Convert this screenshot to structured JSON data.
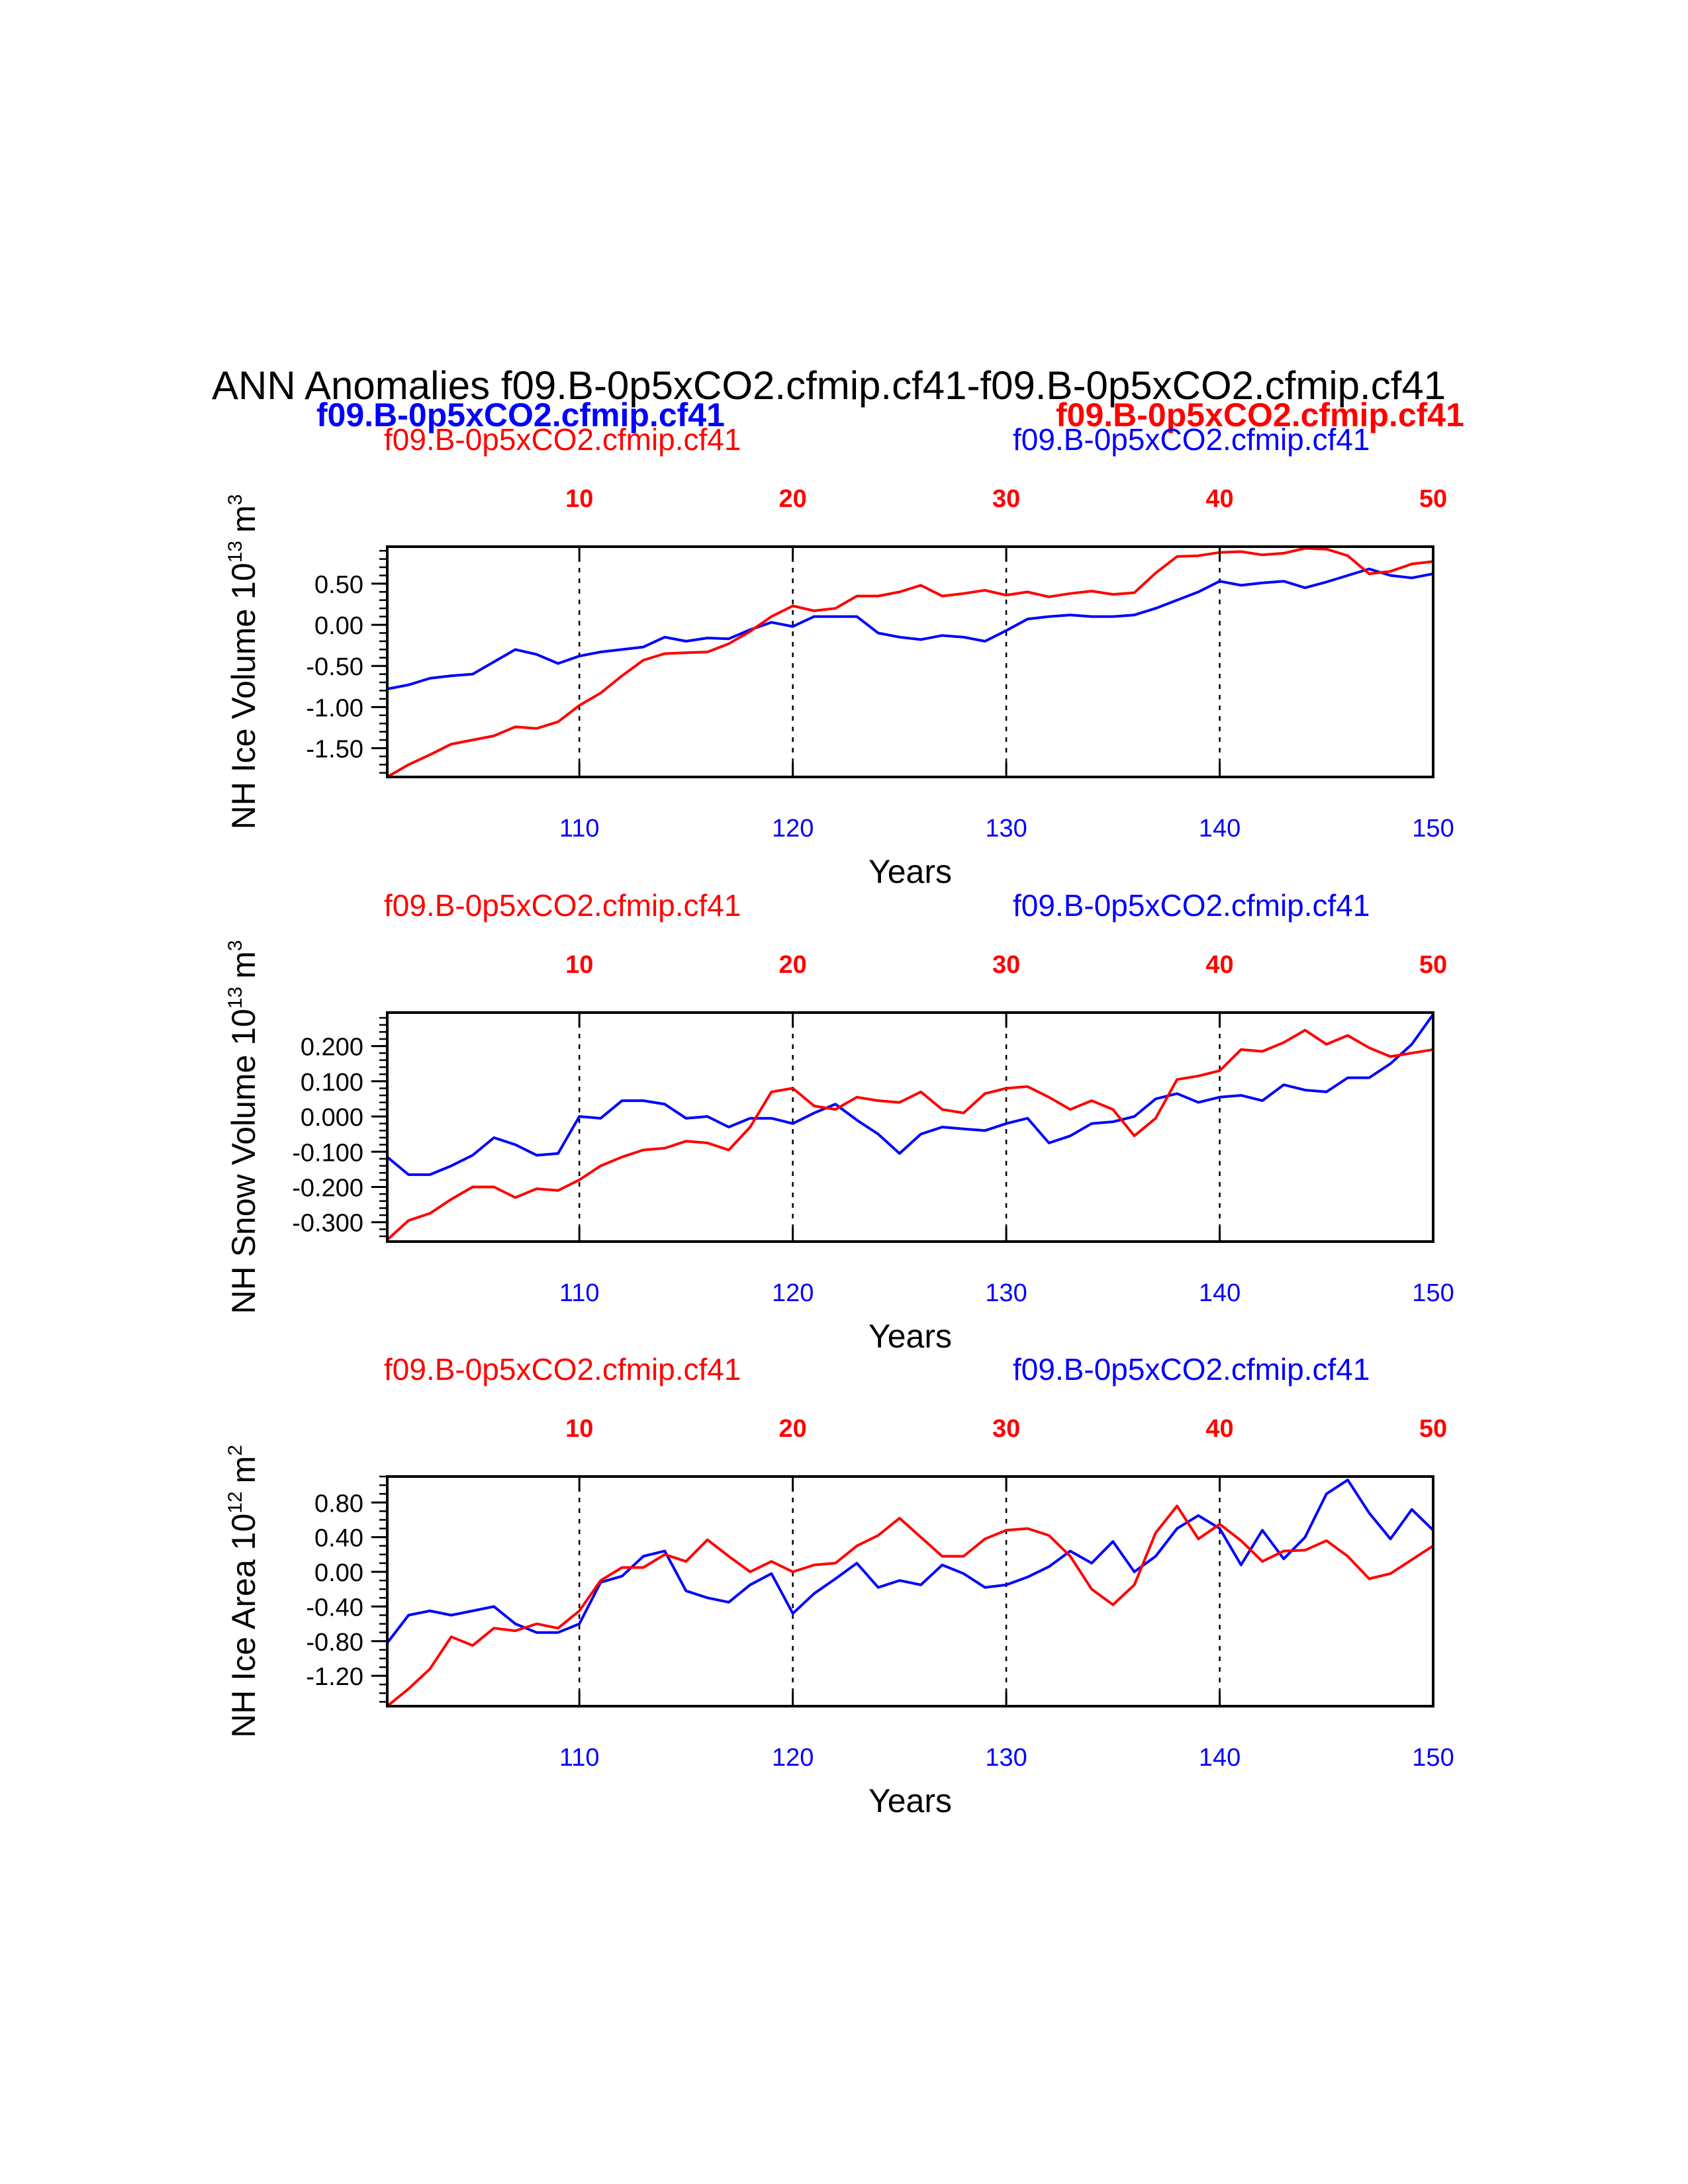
{
  "title": "ANN Anomalies f09.B-0p5xCO2.cfmip.cf41-f09.B-0p5xCO2.cfmip.cf41",
  "legend": {
    "blue_label": "f09.B-0p5xCO2.cfmip.cf41",
    "red_label": "f09.B-0p5xCO2.cfmip.cf41"
  },
  "colors": {
    "case1": "#0000ff",
    "case2": "#ff0000",
    "axis": "#000000"
  },
  "chart_data": [
    {
      "type": "line",
      "ylabel": "NH Ice Volume 10^13 m^3",
      "ylabel_main": "NH Ice Volume 10",
      "ylabel_exp": "13",
      "ylabel_unit": "m",
      "ylabel_unit_exp": "3",
      "xlabel": "Years",
      "top_left_label": "f09.B-0p5xCO2.cfmip.cf41",
      "top_right_label": "f09.B-0p5xCO2.cfmip.cf41",
      "xlim": [
        101,
        150
      ],
      "ylim": [
        -1.85,
        0.95
      ],
      "yticks": [
        0.5,
        0.0,
        -0.5,
        -1.0,
        -1.5
      ],
      "ytick_labels": [
        "0.50",
        "0.00",
        "-0.50",
        "-1.00",
        "-1.50"
      ],
      "ytick_minor": 0.1,
      "bottom_ticks": [
        110,
        120,
        130,
        140,
        150
      ],
      "bottom_tick_labels": [
        "110",
        "120",
        "130",
        "140",
        "150"
      ],
      "top_ticks": [
        10,
        20,
        30,
        40,
        50
      ],
      "top_tick_labels": [
        "10",
        "20",
        "30",
        "40",
        "50"
      ],
      "x": [
        101,
        102,
        103,
        104,
        105,
        106,
        107,
        108,
        109,
        110,
        111,
        112,
        113,
        114,
        115,
        116,
        117,
        118,
        119,
        120,
        121,
        122,
        123,
        124,
        125,
        126,
        127,
        128,
        129,
        130,
        131,
        132,
        133,
        134,
        135,
        136,
        137,
        138,
        139,
        140,
        141,
        142,
        143,
        144,
        145,
        146,
        147,
        148,
        149,
        150
      ],
      "series": [
        {
          "color_key": "case1",
          "values": [
            -0.78,
            -0.73,
            -0.65,
            -0.62,
            -0.6,
            -0.45,
            -0.3,
            -0.36,
            -0.47,
            -0.38,
            -0.33,
            -0.3,
            -0.27,
            -0.15,
            -0.2,
            -0.16,
            -0.17,
            -0.06,
            0.03,
            -0.02,
            0.1,
            0.1,
            0.1,
            -0.1,
            -0.15,
            -0.18,
            -0.13,
            -0.15,
            -0.2,
            -0.07,
            0.07,
            0.1,
            0.12,
            0.1,
            0.1,
            0.12,
            0.2,
            0.3,
            0.4,
            0.53,
            0.48,
            0.51,
            0.53,
            0.45,
            0.52,
            0.6,
            0.68,
            0.6,
            0.57,
            0.62
          ]
        },
        {
          "color_key": "case2",
          "values": [
            -1.85,
            -1.7,
            -1.58,
            -1.45,
            -1.4,
            -1.35,
            -1.24,
            -1.26,
            -1.18,
            -0.98,
            -0.83,
            -0.62,
            -0.43,
            -0.35,
            -0.34,
            -0.33,
            -0.23,
            -0.08,
            0.1,
            0.23,
            0.17,
            0.2,
            0.35,
            0.35,
            0.4,
            0.48,
            0.35,
            0.38,
            0.42,
            0.36,
            0.4,
            0.34,
            0.38,
            0.41,
            0.37,
            0.39,
            0.63,
            0.83,
            0.84,
            0.88,
            0.89,
            0.85,
            0.87,
            0.93,
            0.92,
            0.84,
            0.62,
            0.65,
            0.74,
            0.77
          ]
        }
      ]
    },
    {
      "type": "line",
      "ylabel": "NH Snow Volume 10^13 m^3",
      "ylabel_main": "NH Snow Volume 10",
      "ylabel_exp": "13",
      "ylabel_unit": "m",
      "ylabel_unit_exp": "3",
      "xlabel": "Years",
      "top_left_label": "f09.B-0p5xCO2.cfmip.cf41",
      "top_right_label": "f09.B-0p5xCO2.cfmip.cf41",
      "xlim": [
        101,
        150
      ],
      "ylim": [
        -0.355,
        0.295
      ],
      "yticks": [
        0.2,
        0.1,
        0.0,
        -0.1,
        -0.2,
        -0.3
      ],
      "ytick_labels": [
        "0.200",
        "0.100",
        "0.000",
        "-0.100",
        "-0.200",
        "-0.300"
      ],
      "ytick_minor": 0.02,
      "bottom_ticks": [
        110,
        120,
        130,
        140,
        150
      ],
      "bottom_tick_labels": [
        "110",
        "120",
        "130",
        "140",
        "150"
      ],
      "top_ticks": [
        10,
        20,
        30,
        40,
        50
      ],
      "top_tick_labels": [
        "10",
        "20",
        "30",
        "40",
        "50"
      ],
      "x": [
        101,
        102,
        103,
        104,
        105,
        106,
        107,
        108,
        109,
        110,
        111,
        112,
        113,
        114,
        115,
        116,
        117,
        118,
        119,
        120,
        121,
        122,
        123,
        124,
        125,
        126,
        127,
        128,
        129,
        130,
        131,
        132,
        133,
        134,
        135,
        136,
        137,
        138,
        139,
        140,
        141,
        142,
        143,
        144,
        145,
        146,
        147,
        148,
        149,
        150
      ],
      "series": [
        {
          "color_key": "case1",
          "values": [
            -0.115,
            -0.165,
            -0.165,
            -0.14,
            -0.11,
            -0.06,
            -0.08,
            -0.11,
            -0.105,
            0.0,
            -0.005,
            0.045,
            0.045,
            0.035,
            -0.005,
            0.0,
            -0.03,
            -0.005,
            -0.005,
            -0.02,
            0.01,
            0.035,
            -0.01,
            -0.05,
            -0.105,
            -0.05,
            -0.03,
            -0.035,
            -0.04,
            -0.02,
            -0.005,
            -0.075,
            -0.055,
            -0.02,
            -0.015,
            0.0,
            0.05,
            0.065,
            0.04,
            0.055,
            0.06,
            0.045,
            0.09,
            0.075,
            0.07,
            0.11,
            0.11,
            0.15,
            0.205,
            0.29
          ]
        },
        {
          "color_key": "case2",
          "values": [
            -0.35,
            -0.295,
            -0.275,
            -0.235,
            -0.2,
            -0.2,
            -0.23,
            -0.205,
            -0.21,
            -0.18,
            -0.14,
            -0.115,
            -0.095,
            -0.09,
            -0.07,
            -0.075,
            -0.095,
            -0.03,
            0.07,
            0.08,
            0.03,
            0.02,
            0.055,
            0.045,
            0.04,
            0.07,
            0.02,
            0.01,
            0.065,
            0.08,
            0.085,
            0.055,
            0.02,
            0.045,
            0.02,
            -0.055,
            -0.005,
            0.105,
            0.115,
            0.13,
            0.19,
            0.185,
            0.21,
            0.245,
            0.205,
            0.23,
            0.195,
            0.17,
            0.18,
            0.19
          ]
        }
      ]
    },
    {
      "type": "line",
      "ylabel": "NH Ice Area 10^12 m^2",
      "ylabel_main": "NH Ice Area 10",
      "ylabel_exp": "12",
      "ylabel_unit": "m",
      "ylabel_unit_exp": "2",
      "xlabel": "Years",
      "top_left_label": "f09.B-0p5xCO2.cfmip.cf41",
      "top_right_label": "f09.B-0p5xCO2.cfmip.cf41",
      "xlim": [
        101,
        150
      ],
      "ylim": [
        -1.55,
        1.1
      ],
      "yticks": [
        0.8,
        0.4,
        0.0,
        -0.4,
        -0.8,
        -1.2
      ],
      "ytick_labels": [
        "0.80",
        "0.40",
        "0.00",
        "-0.40",
        "-0.80",
        "-1.20"
      ],
      "ytick_minor": 0.1,
      "bottom_ticks": [
        110,
        120,
        130,
        140,
        150
      ],
      "bottom_tick_labels": [
        "110",
        "120",
        "130",
        "140",
        "150"
      ],
      "top_ticks": [
        10,
        20,
        30,
        40,
        50
      ],
      "top_tick_labels": [
        "10",
        "20",
        "30",
        "40",
        "50"
      ],
      "x": [
        101,
        102,
        103,
        104,
        105,
        106,
        107,
        108,
        109,
        110,
        111,
        112,
        113,
        114,
        115,
        116,
        117,
        118,
        119,
        120,
        121,
        122,
        123,
        124,
        125,
        126,
        127,
        128,
        129,
        130,
        131,
        132,
        133,
        134,
        135,
        136,
        137,
        138,
        139,
        140,
        141,
        142,
        143,
        144,
        145,
        146,
        147,
        148,
        149,
        150
      ],
      "series": [
        {
          "color_key": "case1",
          "values": [
            -0.82,
            -0.5,
            -0.45,
            -0.5,
            -0.45,
            -0.4,
            -0.6,
            -0.7,
            -0.7,
            -0.6,
            -0.12,
            -0.05,
            0.18,
            0.24,
            -0.22,
            -0.3,
            -0.35,
            -0.15,
            -0.02,
            -0.48,
            -0.25,
            -0.08,
            0.1,
            -0.18,
            -0.1,
            -0.15,
            0.08,
            -0.02,
            -0.18,
            -0.15,
            -0.06,
            0.06,
            0.24,
            0.1,
            0.35,
            0.0,
            0.18,
            0.5,
            0.65,
            0.5,
            0.08,
            0.48,
            0.15,
            0.4,
            0.9,
            1.06,
            0.68,
            0.38,
            0.72,
            0.48
          ]
        },
        {
          "color_key": "case2",
          "values": [
            -1.55,
            -1.35,
            -1.12,
            -0.75,
            -0.85,
            -0.65,
            -0.68,
            -0.6,
            -0.65,
            -0.45,
            -0.1,
            0.05,
            0.05,
            0.2,
            0.12,
            0.37,
            0.18,
            0.0,
            0.12,
            0.0,
            0.08,
            0.1,
            0.3,
            0.42,
            0.62,
            0.4,
            0.18,
            0.18,
            0.38,
            0.48,
            0.5,
            0.42,
            0.18,
            -0.2,
            -0.38,
            -0.15,
            0.45,
            0.76,
            0.38,
            0.55,
            0.36,
            0.12,
            0.24,
            0.25,
            0.36,
            0.18,
            -0.08,
            -0.02,
            0.14,
            0.3
          ]
        }
      ]
    }
  ]
}
